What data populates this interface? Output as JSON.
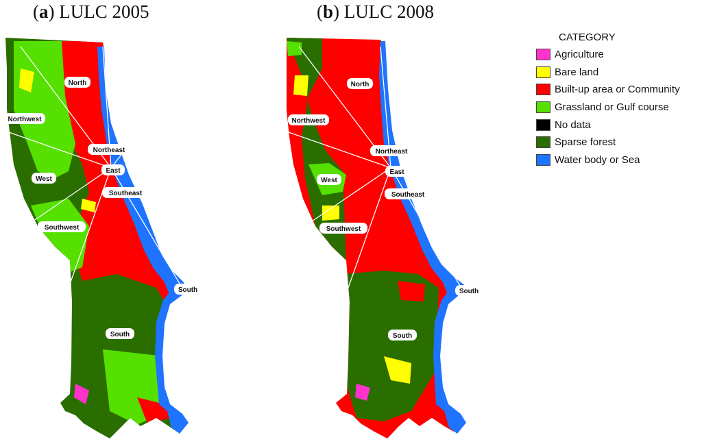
{
  "panels": [
    {
      "id": "a",
      "letter": "a",
      "title": "LULC 2005"
    },
    {
      "id": "b",
      "letter": "b",
      "title": "LULC 2008"
    }
  ],
  "legend": {
    "title": "CATEGORY",
    "items": [
      {
        "label": "Agriculture",
        "color": "#ff33cc"
      },
      {
        "label": "Bare land",
        "color": "#ffff00"
      },
      {
        "label": "Built-up area or Community",
        "color": "#ff0000"
      },
      {
        "label": "Grassland or Gulf course",
        "color": "#55e000"
      },
      {
        "label": "No data",
        "color": "#000000"
      },
      {
        "label": "Sparse forest",
        "color": "#2a6e00"
      },
      {
        "label": "Water body or Sea",
        "color": "#1e74ff"
      }
    ]
  },
  "zone_labels": [
    "North",
    "Northwest",
    "Northeast",
    "East",
    "West",
    "Southeast",
    "Southwest",
    "South",
    "South"
  ]
}
